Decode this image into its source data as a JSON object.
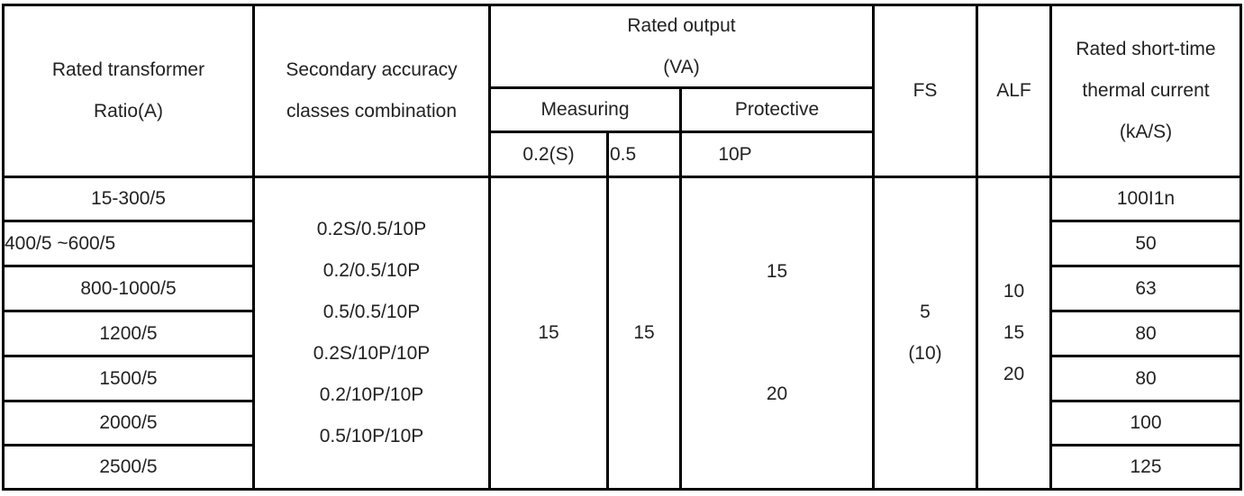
{
  "header": {
    "col_ratio": [
      "Rated transformer",
      "Ratio(A)"
    ],
    "col_classes": [
      "Secondary accuracy",
      "classes combination"
    ],
    "col_output": [
      "Rated output",
      "(VA)"
    ],
    "measuring": "Measuring",
    "protective": "Protective",
    "sub_02s": "0.2(S)",
    "sub_05": "0.5",
    "sub_10p": "10P",
    "fs": "FS",
    "alf": "ALF",
    "col_thermal": [
      "Rated short-time",
      "thermal current",
      "(kA/S)"
    ]
  },
  "rows": [
    {
      "ratio": "15-300/5",
      "thermal": "100I1n"
    },
    {
      "ratio": "400/5 ~600/5",
      "thermal": "50"
    },
    {
      "ratio": "800-1000/5",
      "thermal": "63"
    },
    {
      "ratio": "1200/5",
      "thermal": "80"
    },
    {
      "ratio": "1500/5",
      "thermal": "80"
    },
    {
      "ratio": "2000/5",
      "thermal": "100"
    },
    {
      "ratio": "2500/5",
      "thermal": "125"
    }
  ],
  "body": {
    "classes": [
      "0.2S/0.5/10P",
      "0.2/0.5/10P",
      "0.5/0.5/10P",
      "0.2S/10P/10P",
      "0.2/10P/10P",
      "0.5/10P/10P"
    ],
    "measuring_02s": "15",
    "measuring_05": "15",
    "protective_top": "15",
    "protective_bottom": "20",
    "fs": [
      "5",
      "(10)"
    ],
    "alf": [
      "10",
      "15",
      "20"
    ]
  }
}
